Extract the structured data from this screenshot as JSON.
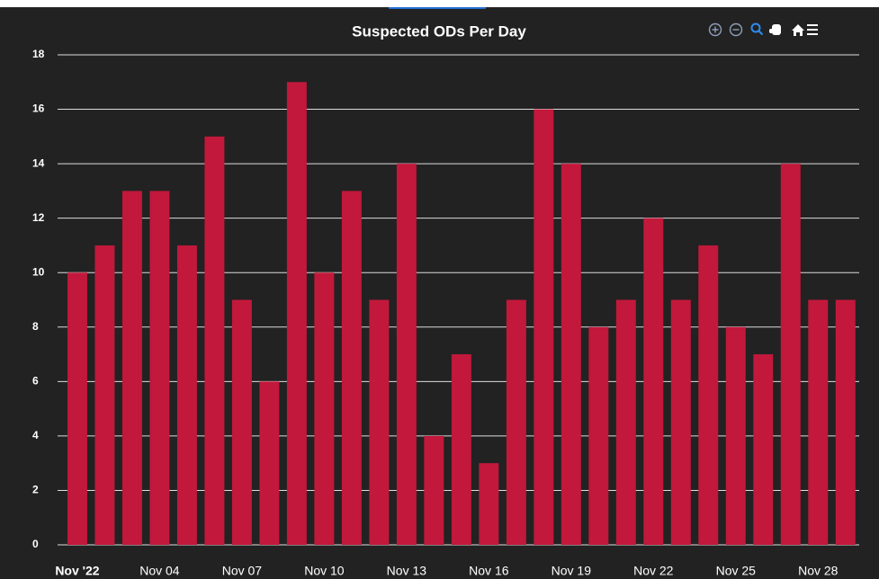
{
  "chart_data": {
    "type": "bar",
    "title": "Suspected ODs Per Day",
    "categories": [
      "Nov '22",
      null,
      null,
      "Nov 04",
      null,
      null,
      "Nov 07",
      null,
      null,
      "Nov 10",
      null,
      null,
      "Nov 13",
      null,
      null,
      "Nov 16",
      null,
      null,
      "Nov 19",
      null,
      null,
      "Nov 22",
      null,
      null,
      "Nov 25",
      null,
      null,
      "Nov 28",
      null
    ],
    "values": [
      10,
      11,
      13,
      13,
      11,
      15,
      9,
      6,
      17,
      10,
      13,
      9,
      14,
      4,
      7,
      3,
      9,
      16,
      14,
      8,
      9,
      12,
      9,
      11,
      8,
      7,
      14,
      9,
      9
    ],
    "color": "#c2183b",
    "ylim": [
      0,
      18
    ],
    "yticks": [
      0,
      2,
      4,
      6,
      8,
      10,
      12,
      14,
      16,
      18
    ],
    "grid": true
  }
}
